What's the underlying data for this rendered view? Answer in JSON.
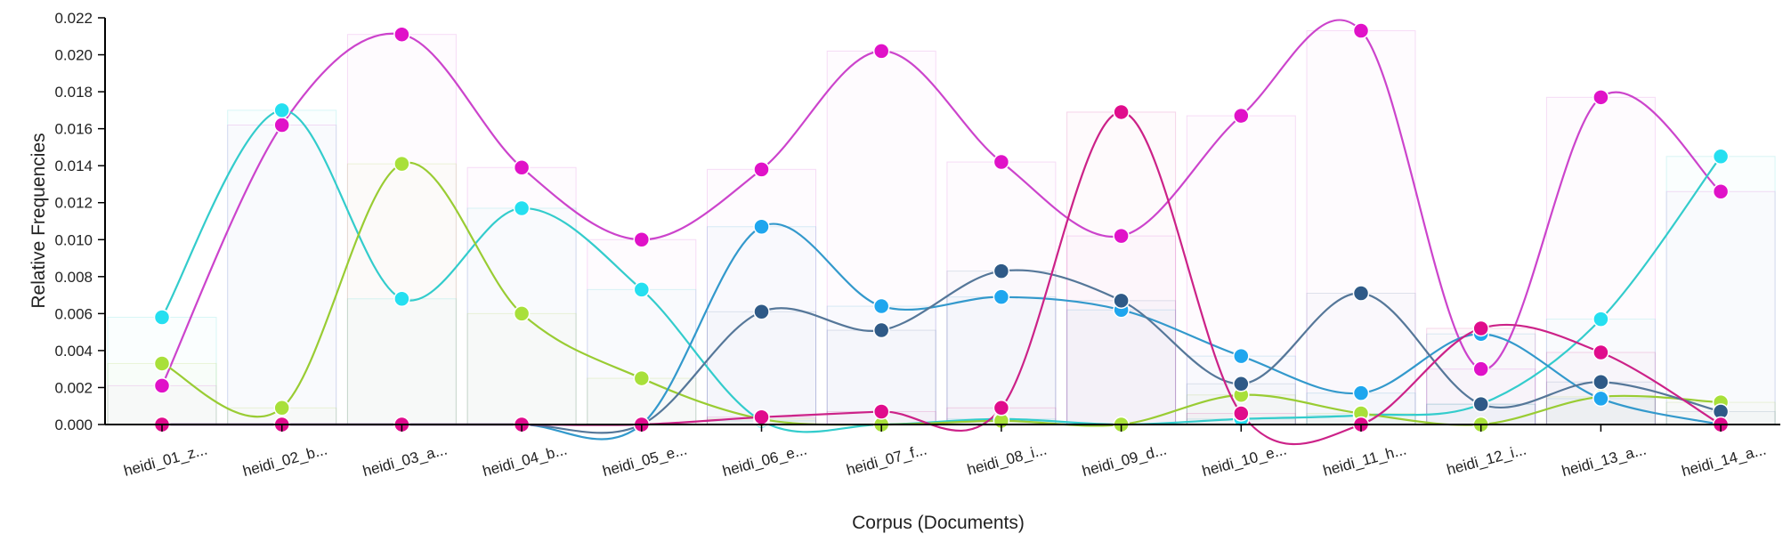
{
  "chart_data": {
    "type": "line",
    "xlabel": "Corpus (Documents)",
    "ylabel": "Relative Frequencies",
    "ylim": [
      0,
      0.022
    ],
    "yticks": [
      "0.000",
      "0.002",
      "0.004",
      "0.006",
      "0.008",
      "0.010",
      "0.012",
      "0.014",
      "0.016",
      "0.018",
      "0.020",
      "0.022"
    ],
    "categories": [
      "heidi_01_z...",
      "heidi_02_b...",
      "heidi_03_a...",
      "heidi_04_b...",
      "heidi_05_e...",
      "heidi_06_e...",
      "heidi_07_f...",
      "heidi_08_i...",
      "heidi_09_d...",
      "heidi_10_e...",
      "heidi_11_h...",
      "heidi_12_i...",
      "heidi_13_a...",
      "heidi_14_a..."
    ],
    "legend": "none",
    "grid": false,
    "series": [
      {
        "color": "#e012c8",
        "curve": "#cc44cc",
        "values": [
          0.0021,
          0.0162,
          0.0211,
          0.0139,
          0.01,
          0.0138,
          0.0202,
          0.0142,
          0.0102,
          0.0167,
          0.0213,
          0.003,
          0.0177,
          0.0126
        ]
      },
      {
        "color": "#25dff0",
        "curve": "#33cccc",
        "values": [
          0.0058,
          0.017,
          0.0068,
          0.0117,
          0.0073,
          0.0002,
          0.0,
          0.0003,
          0.0,
          0.0003,
          0.0005,
          0.0011,
          0.0057,
          0.0145
        ]
      },
      {
        "color": "#a8e03a",
        "curve": "#99cc33",
        "values": [
          0.0033,
          0.0009,
          0.0141,
          0.006,
          0.0025,
          0.0003,
          0.0,
          0.0002,
          0.0,
          0.0016,
          0.0006,
          0.0,
          0.0015,
          0.0012
        ]
      },
      {
        "color": "#1fa6ee",
        "curve": "#3399cc",
        "values": [
          0.0,
          0.0,
          0.0,
          0.0,
          0.0,
          0.0107,
          0.0064,
          0.0069,
          0.0062,
          0.0037,
          0.0017,
          0.0049,
          0.0014,
          0.0
        ]
      },
      {
        "color": "#2f5a87",
        "curve": "#557799",
        "values": [
          0.0,
          0.0,
          0.0,
          0.0,
          0.0,
          0.0061,
          0.0051,
          0.0083,
          0.0067,
          0.0022,
          0.0071,
          0.0011,
          0.0023,
          0.0007
        ]
      },
      {
        "color": "#e00c8c",
        "curve": "#cc2288",
        "values": [
          0.0,
          0.0,
          0.0,
          0.0,
          0.0,
          0.0004,
          0.0007,
          0.0009,
          0.0169,
          0.0006,
          0.0,
          0.0052,
          0.0039,
          0.0
        ]
      }
    ]
  }
}
